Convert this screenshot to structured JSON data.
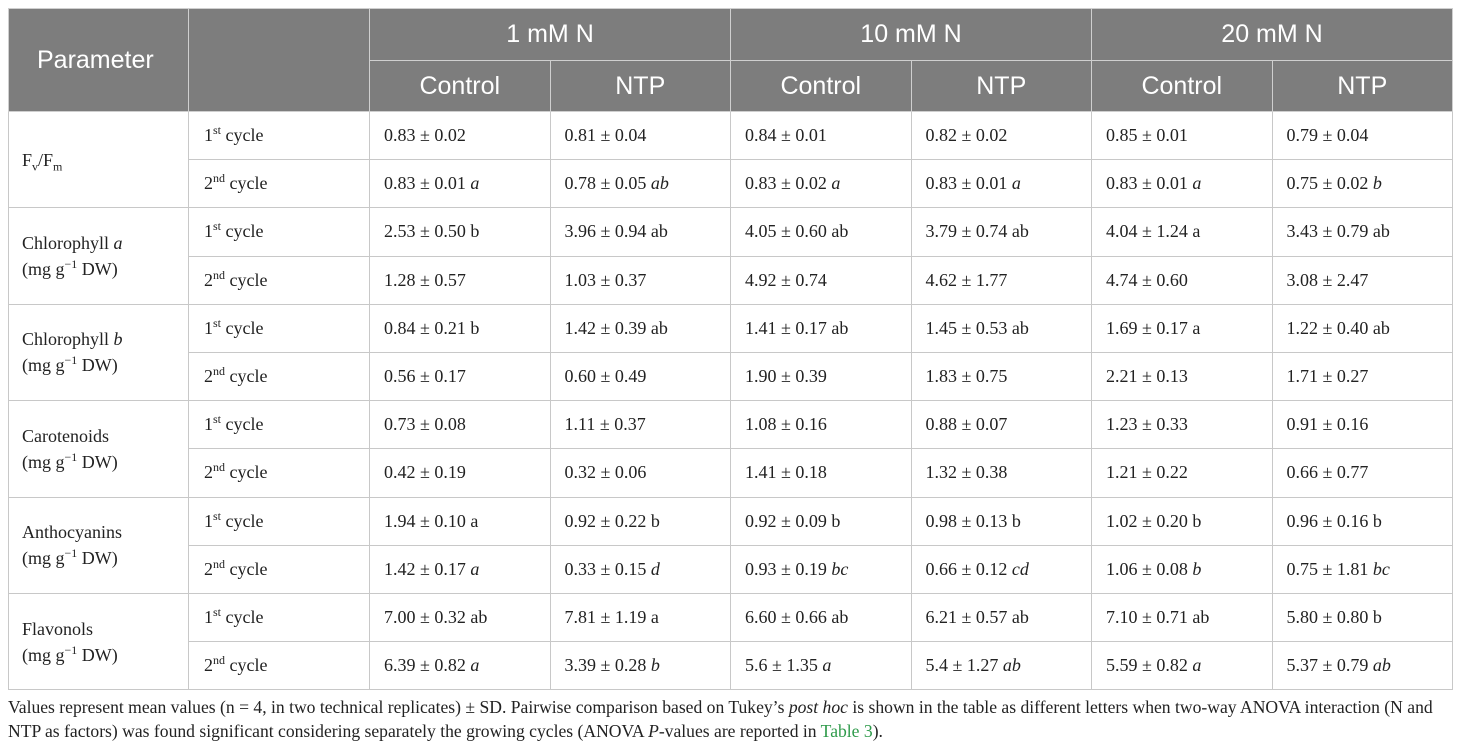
{
  "header": {
    "parameter": "Parameter",
    "groups": [
      "1 mM N",
      "10 mM N",
      "20 mM N"
    ],
    "subheaders": [
      "Control",
      "NTP",
      "Control",
      "NTP",
      "Control",
      "NTP"
    ]
  },
  "rows": [
    {
      "param": {
        "main": "F",
        "sub1": "v",
        "slash": "/F",
        "sub2": "m"
      },
      "cycles": [
        {
          "n": "1",
          "sup": "st",
          "txt": " cycle",
          "values": [
            {
              "v": "0.83 ± 0.02",
              "l": "",
              "i": false
            },
            {
              "v": "0.81 ± 0.04",
              "l": "",
              "i": false
            },
            {
              "v": "0.84 ± 0.01",
              "l": "",
              "i": false
            },
            {
              "v": "0.82 ± 0.02",
              "l": "",
              "i": false
            },
            {
              "v": "0.85 ± 0.01",
              "l": "",
              "i": false
            },
            {
              "v": "0.79 ± 0.04",
              "l": "",
              "i": false
            }
          ]
        },
        {
          "n": "2",
          "sup": "nd",
          "txt": " cycle",
          "values": [
            {
              "v": "0.83 ± 0.01",
              "l": "a",
              "i": true
            },
            {
              "v": "0.78 ± 0.05",
              "l": "ab",
              "i": true
            },
            {
              "v": "0.83 ± 0.02",
              "l": "a",
              "i": true
            },
            {
              "v": "0.83 ± 0.01",
              "l": "a",
              "i": true
            },
            {
              "v": "0.83 ± 0.01",
              "l": "a",
              "i": true
            },
            {
              "v": "0.75 ± 0.02",
              "l": "b",
              "i": true
            }
          ]
        }
      ]
    },
    {
      "param": {
        "name": "Chlorophyll ",
        "ital": "a",
        "unit_pre": "(mg g",
        "unit_sup": "−1",
        "unit_post": " DW)"
      },
      "cycles": [
        {
          "n": "1",
          "sup": "st",
          "txt": " cycle",
          "values": [
            {
              "v": "2.53 ± 0.50",
              "l": "b",
              "i": false
            },
            {
              "v": "3.96 ± 0.94",
              "l": "ab",
              "i": false
            },
            {
              "v": "4.05 ± 0.60",
              "l": "ab",
              "i": false
            },
            {
              "v": "3.79 ± 0.74",
              "l": "ab",
              "i": false
            },
            {
              "v": "4.04 ± 1.24",
              "l": "a",
              "i": false
            },
            {
              "v": "3.43 ± 0.79",
              "l": "ab",
              "i": false
            }
          ]
        },
        {
          "n": "2",
          "sup": "nd",
          "txt": " cycle",
          "values": [
            {
              "v": "1.28 ± 0.57",
              "l": "",
              "i": false
            },
            {
              "v": "1.03 ± 0.37",
              "l": "",
              "i": false
            },
            {
              "v": "4.92 ± 0.74",
              "l": "",
              "i": false
            },
            {
              "v": "4.62 ± 1.77",
              "l": "",
              "i": false
            },
            {
              "v": "4.74 ± 0.60",
              "l": "",
              "i": false
            },
            {
              "v": "3.08 ± 2.47",
              "l": "",
              "i": false
            }
          ]
        }
      ]
    },
    {
      "param": {
        "name": "Chlorophyll ",
        "ital": "b",
        "unit_pre": "(mg g",
        "unit_sup": "−1",
        "unit_post": " DW)"
      },
      "cycles": [
        {
          "n": "1",
          "sup": "st",
          "txt": " cycle",
          "values": [
            {
              "v": "0.84 ± 0.21",
              "l": "b",
              "i": false
            },
            {
              "v": "1.42 ± 0.39",
              "l": "ab",
              "i": false
            },
            {
              "v": "1.41 ± 0.17",
              "l": "ab",
              "i": false
            },
            {
              "v": "1.45 ± 0.53",
              "l": "ab",
              "i": false
            },
            {
              "v": "1.69 ± 0.17",
              "l": "a",
              "i": false
            },
            {
              "v": "1.22 ± 0.40",
              "l": "ab",
              "i": false
            }
          ]
        },
        {
          "n": "2",
          "sup": "nd",
          "txt": " cycle",
          "values": [
            {
              "v": "0.56 ± 0.17",
              "l": "",
              "i": false
            },
            {
              "v": "0.60 ± 0.49",
              "l": "",
              "i": false
            },
            {
              "v": "1.90 ± 0.39",
              "l": "",
              "i": false
            },
            {
              "v": "1.83 ± 0.75",
              "l": "",
              "i": false
            },
            {
              "v": "2.21 ± 0.13",
              "l": "",
              "i": false
            },
            {
              "v": "1.71 ± 0.27",
              "l": "",
              "i": false
            }
          ]
        }
      ]
    },
    {
      "param": {
        "name": "Carotenoids",
        "ital": "",
        "unit_pre": "(mg g",
        "unit_sup": "−1",
        "unit_post": " DW)"
      },
      "cycles": [
        {
          "n": "1",
          "sup": "st",
          "txt": " cycle",
          "values": [
            {
              "v": "0.73 ± 0.08",
              "l": "",
              "i": false
            },
            {
              "v": "1.11 ± 0.37",
              "l": "",
              "i": false
            },
            {
              "v": "1.08 ± 0.16",
              "l": "",
              "i": false
            },
            {
              "v": "0.88 ± 0.07",
              "l": "",
              "i": false
            },
            {
              "v": "1.23 ± 0.33",
              "l": "",
              "i": false
            },
            {
              "v": "0.91 ± 0.16",
              "l": "",
              "i": false
            }
          ]
        },
        {
          "n": "2",
          "sup": "nd",
          "txt": " cycle",
          "values": [
            {
              "v": "0.42 ± 0.19",
              "l": "",
              "i": false
            },
            {
              "v": "0.32 ± 0.06",
              "l": "",
              "i": false
            },
            {
              "v": "1.41 ± 0.18",
              "l": "",
              "i": false
            },
            {
              "v": "1.32 ± 0.38",
              "l": "",
              "i": false
            },
            {
              "v": "1.21 ± 0.22",
              "l": "",
              "i": false
            },
            {
              "v": "0.66 ± 0.77",
              "l": "",
              "i": false
            }
          ]
        }
      ]
    },
    {
      "param": {
        "name": "Anthocyanins",
        "ital": "",
        "unit_pre": "(mg g",
        "unit_sup": "−1",
        "unit_post": " DW)"
      },
      "cycles": [
        {
          "n": "1",
          "sup": "st",
          "txt": " cycle",
          "values": [
            {
              "v": "1.94 ± 0.10",
              "l": "a",
              "i": false
            },
            {
              "v": "0.92 ± 0.22",
              "l": "b",
              "i": false
            },
            {
              "v": "0.92 ± 0.09",
              "l": "b",
              "i": false
            },
            {
              "v": "0.98 ± 0.13",
              "l": "b",
              "i": false
            },
            {
              "v": "1.02 ± 0.20",
              "l": "b",
              "i": false
            },
            {
              "v": "0.96 ± 0.16",
              "l": "b",
              "i": false
            }
          ]
        },
        {
          "n": "2",
          "sup": "nd",
          "txt": " cycle",
          "values": [
            {
              "v": "1.42 ± 0.17",
              "l": "a",
              "i": true
            },
            {
              "v": "0.33 ± 0.15",
              "l": "d",
              "i": true
            },
            {
              "v": "0.93 ± 0.19",
              "l": "bc",
              "i": true
            },
            {
              "v": "0.66 ± 0.12",
              "l": "cd",
              "i": true
            },
            {
              "v": "1.06 ± 0.08",
              "l": "b",
              "i": true
            },
            {
              "v": "0.75 ± 1.81",
              "l": "bc",
              "i": true
            }
          ]
        }
      ]
    },
    {
      "param": {
        "name": "Flavonols",
        "ital": "",
        "unit_pre": "(mg g",
        "unit_sup": "−1",
        "unit_post": " DW)"
      },
      "cycles": [
        {
          "n": "1",
          "sup": "st",
          "txt": " cycle",
          "values": [
            {
              "v": "7.00 ± 0.32",
              "l": "ab",
              "i": false
            },
            {
              "v": "7.81 ± 1.19",
              "l": "a",
              "i": false
            },
            {
              "v": "6.60 ± 0.66",
              "l": "ab",
              "i": false
            },
            {
              "v": "6.21 ± 0.57",
              "l": "ab",
              "i": false
            },
            {
              "v": "7.10 ± 0.71",
              "l": "ab",
              "i": false
            },
            {
              "v": "5.80 ± 0.80",
              "l": "b",
              "i": false
            }
          ]
        },
        {
          "n": "2",
          "sup": "nd",
          "txt": " cycle",
          "values": [
            {
              "v": "6.39 ± 0.82",
              "l": "a",
              "i": true
            },
            {
              "v": "3.39 ± 0.28",
              "l": "b",
              "i": true
            },
            {
              "v": "5.6 ± 1.35",
              "l": "a",
              "i": true
            },
            {
              "v": "5.4 ± 1.27",
              "l": "ab",
              "i": true
            },
            {
              "v": "5.59 ± 0.82",
              "l": "a",
              "i": true
            },
            {
              "v": "5.37 ± 0.79",
              "l": "ab",
              "i": true
            }
          ]
        }
      ]
    }
  ],
  "footnote": {
    "part1": "Values represent mean values (n = 4, in two technical replicates) ± SD. Pairwise comparison based on Tukey’s ",
    "ital1": "post hoc",
    "part2": " is shown in the table as different letters when two-way ANOVA interaction (N and NTP as factors) was found significant considering separately the growing cycles (ANOVA ",
    "ital2": "P",
    "part3": "-values are reported in ",
    "link": "Table 3",
    "part4": ")."
  },
  "colors": {
    "header_bg": "#7d7d7d",
    "link": "#2e9a4a"
  }
}
